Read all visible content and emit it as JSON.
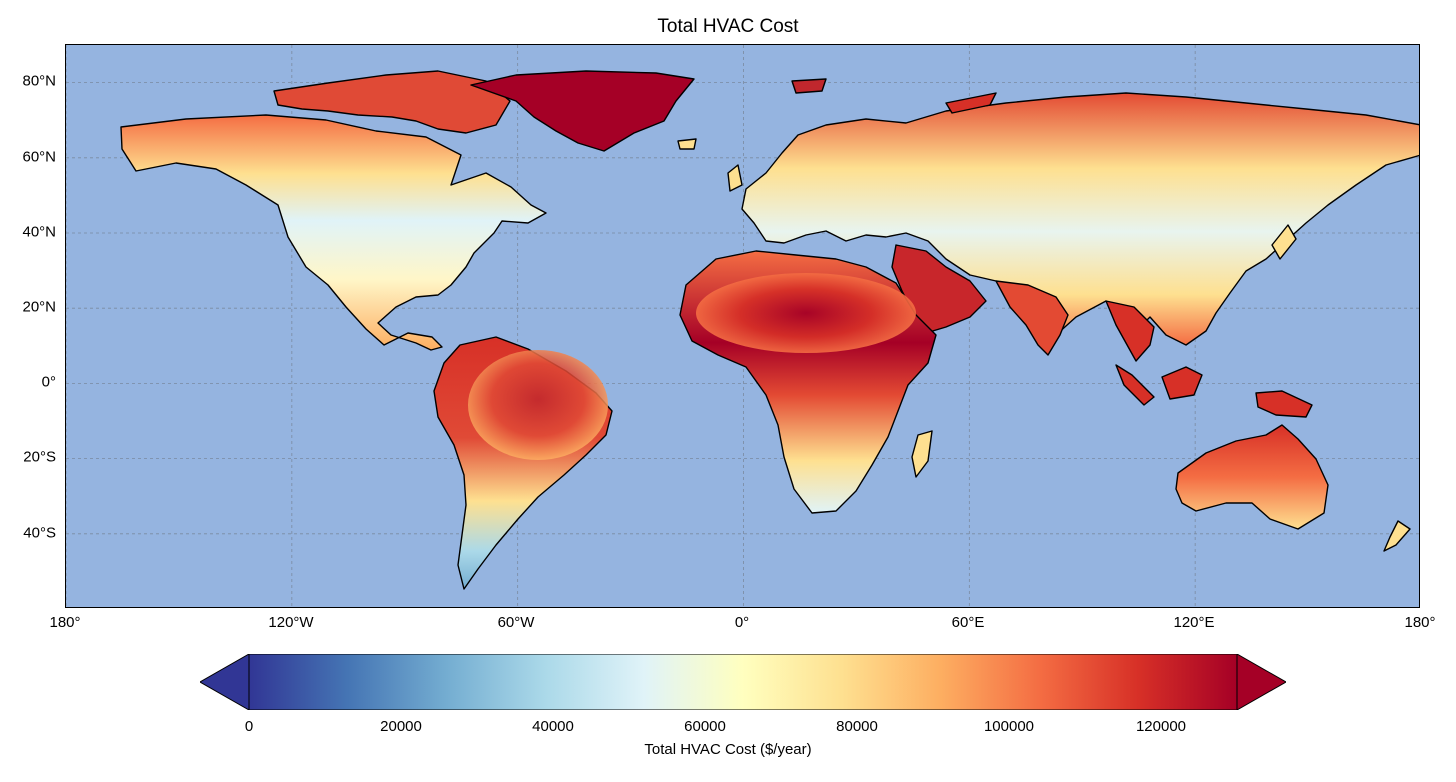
{
  "title": "Total HVAC Cost",
  "map": {
    "projection": "PlateCarree",
    "extent": {
      "lon": [
        -180,
        180
      ],
      "lat": [
        -60,
        90
      ]
    },
    "ocean_color": "#95b4e0",
    "gridlines": true,
    "lat_ticks": [
      "80°N",
      "60°N",
      "40°N",
      "20°N",
      "0°",
      "20°S",
      "40°S"
    ],
    "lat_values": [
      80,
      60,
      40,
      20,
      0,
      -20,
      -40
    ],
    "lon_ticks": [
      "180°",
      "120°W",
      "60°W",
      "0°",
      "60°E",
      "120°E",
      "180°"
    ],
    "lon_values": [
      -180,
      -120,
      -60,
      0,
      60,
      120,
      180
    ]
  },
  "colorbar": {
    "label": "Total HVAC Cost ($/year)",
    "colormap": "RdYlBu_r",
    "range": [
      0,
      130000
    ],
    "extend": "both",
    "ticks": [
      "0",
      "20000",
      "40000",
      "60000",
      "80000",
      "100000",
      "120000"
    ],
    "tick_values": [
      0,
      20000,
      40000,
      60000,
      80000,
      100000,
      120000
    ],
    "stops": [
      "#313695",
      "#4575b4",
      "#74add1",
      "#abd9e9",
      "#e0f3f8",
      "#ffffbf",
      "#fee090",
      "#fdae61",
      "#f46d43",
      "#d73027",
      "#a50026"
    ]
  }
}
